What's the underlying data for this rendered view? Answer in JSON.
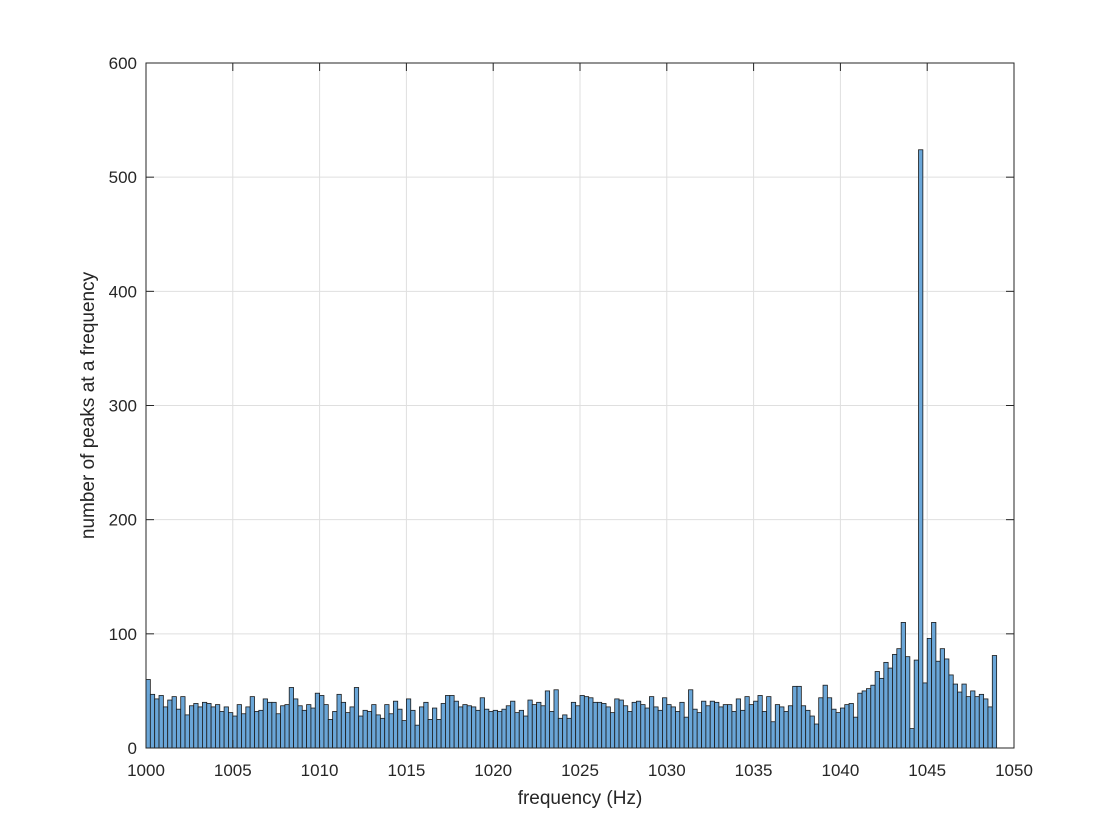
{
  "chart_data": {
    "type": "bar",
    "title": "",
    "xlabel": "frequency (Hz)",
    "ylabel": "number of peaks at a frequency",
    "xlim": [
      1000,
      1050
    ],
    "ylim": [
      0,
      600
    ],
    "xticks": [
      1000,
      1005,
      1010,
      1015,
      1020,
      1025,
      1030,
      1035,
      1040,
      1045,
      1050
    ],
    "yticks": [
      0,
      100,
      200,
      300,
      400,
      500,
      600
    ],
    "bin_width": 0.25,
    "grid": true,
    "bar_color": "#6aa6d8",
    "edge_color": "#1a1a1a",
    "values": [
      60,
      47,
      43,
      46,
      36,
      42,
      45,
      34,
      45,
      29,
      37,
      39,
      36,
      40,
      39,
      36,
      38,
      32,
      36,
      31,
      28,
      38,
      30,
      36,
      45,
      32,
      33,
      43,
      40,
      40,
      30,
      37,
      38,
      53,
      43,
      37,
      33,
      38,
      35,
      48,
      46,
      38,
      25,
      32,
      47,
      40,
      31,
      36,
      53,
      28,
      33,
      32,
      38,
      29,
      26,
      38,
      30,
      41,
      34,
      24,
      43,
      33,
      20,
      36,
      40,
      25,
      35,
      25,
      39,
      46,
      46,
      41,
      36,
      38,
      37,
      36,
      33,
      44,
      34,
      32,
      33,
      32,
      34,
      37,
      41,
      31,
      33,
      28,
      42,
      38,
      40,
      37,
      50,
      32,
      51,
      26,
      29,
      26,
      40,
      37,
      46,
      45,
      44,
      40,
      40,
      39,
      36,
      31,
      43,
      42,
      37,
      32,
      40,
      41,
      38,
      35,
      45,
      36,
      33,
      44,
      38,
      36,
      32,
      40,
      27,
      51,
      34,
      31,
      41,
      37,
      41,
      40,
      36,
      38,
      38,
      32,
      43,
      33,
      45,
      38,
      41,
      46,
      32,
      45,
      23,
      38,
      36,
      32,
      37,
      54,
      54,
      37,
      33,
      28,
      21,
      44,
      55,
      44,
      34,
      31,
      35,
      38,
      39,
      27,
      48,
      50,
      52,
      55,
      67,
      61,
      75,
      70,
      82,
      87,
      110,
      80,
      17,
      77,
      524,
      57,
      96,
      110,
      76,
      87,
      78,
      64,
      56,
      49,
      56,
      45,
      50,
      45,
      47,
      43,
      36,
      81
    ]
  }
}
